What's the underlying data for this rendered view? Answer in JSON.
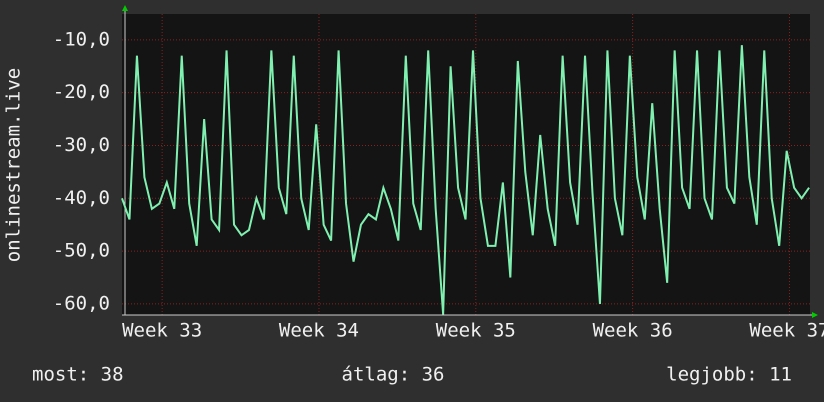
{
  "chart_data": {
    "type": "line",
    "y_label": "onlinestream.live",
    "x": [
      0,
      8,
      16,
      24,
      32,
      40,
      48,
      56,
      64,
      72,
      80,
      88,
      96,
      104,
      112,
      120,
      128,
      136,
      144,
      152,
      160,
      168,
      176,
      184,
      192,
      200,
      208,
      216,
      224,
      232,
      240,
      248,
      256,
      264,
      272,
      280,
      288,
      296,
      304,
      312,
      320,
      328,
      336,
      344,
      352,
      360,
      368,
      376,
      384,
      392,
      400,
      408,
      416,
      424,
      432,
      440,
      448,
      456,
      464,
      472,
      480,
      488,
      496,
      504,
      512,
      520,
      528,
      536,
      544,
      552,
      560,
      568,
      576,
      584,
      592,
      600,
      608,
      616,
      624,
      632,
      640,
      648,
      656,
      664,
      672,
      680,
      688,
      696,
      704,
      712,
      720,
      728,
      736
    ],
    "series": [
      {
        "name": "onlinestream.live",
        "color": "#80f0b0",
        "values": [
          -40,
          -44,
          -13,
          -36,
          -42,
          -41,
          -37,
          -42,
          -13,
          -41,
          -49,
          -25,
          -44,
          -46,
          -12,
          -45,
          -47,
          -46,
          -40,
          -44,
          -12,
          -38,
          -43,
          -13,
          -40,
          -46,
          -26,
          -45,
          -48,
          -12,
          -41,
          -52,
          -45,
          -43,
          -44,
          -38,
          -42,
          -48,
          -13,
          -41,
          -46,
          -12,
          -42,
          -62,
          -15,
          -38,
          -44,
          -12,
          -40,
          -49,
          -49,
          -37,
          -55,
          -14,
          -35,
          -47,
          -28,
          -42,
          -49,
          -13,
          -37,
          -45,
          -13,
          -39,
          -60,
          -12,
          -40,
          -47,
          -13,
          -36,
          -44,
          -22,
          -42,
          -56,
          -12,
          -38,
          -42,
          -12,
          -40,
          -44,
          -12,
          -38,
          -41,
          -11,
          -36,
          -45,
          -12,
          -40,
          -49,
          -31,
          -38,
          -40,
          -38
        ]
      }
    ],
    "xlim": [
      0,
      737
    ],
    "xticks": [
      {
        "value": 43,
        "label": "Week 33"
      },
      {
        "value": 211,
        "label": "Week 34"
      },
      {
        "value": 379,
        "label": "Week 35"
      },
      {
        "value": 547,
        "label": "Week 36"
      },
      {
        "value": 715,
        "label": "Week 37"
      }
    ],
    "ylim": [
      -62.1,
      -5.1
    ],
    "yticks": [
      {
        "value": -10,
        "label": "-10,0"
      },
      {
        "value": -20,
        "label": "-20,0"
      },
      {
        "value": -30,
        "label": "-30,0"
      },
      {
        "value": -40,
        "label": "-40,0"
      },
      {
        "value": -50,
        "label": "-50,0"
      },
      {
        "value": -60,
        "label": "-60,0"
      }
    ],
    "grid": true,
    "footer": [
      "most: 38",
      "átlag: 36",
      "legjobb: 11"
    ]
  }
}
